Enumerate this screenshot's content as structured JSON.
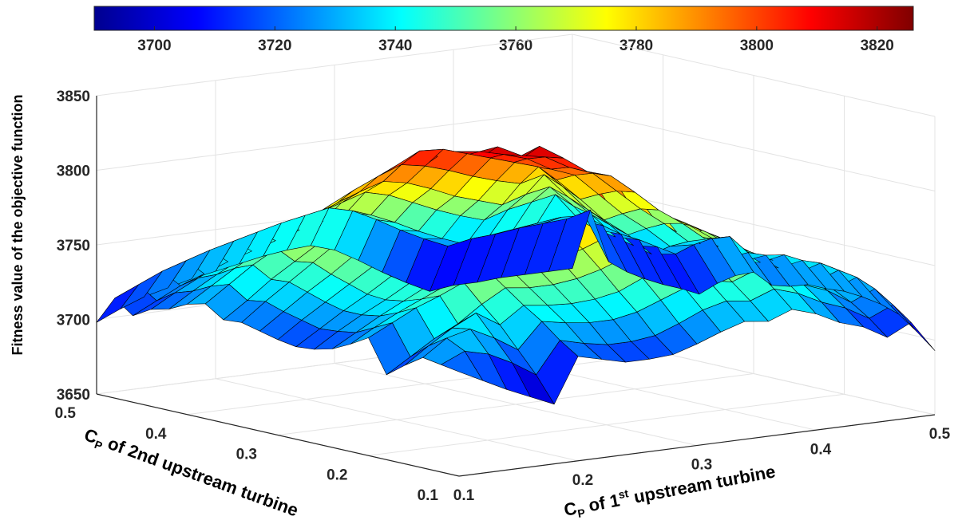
{
  "chart_data": {
    "type": "surface",
    "zlabel": "Fitness value of the objective function",
    "xlabel": {
      "prefix": "C",
      "sub": "P",
      "mid": " of 1",
      "sup": "st",
      "rest": " upstream turbine"
    },
    "ylabel": {
      "prefix": "C",
      "sub": "P",
      "rest": " of 2nd upstream turbine"
    },
    "x_ticks": [
      "0.1",
      "0.2",
      "0.3",
      "0.4",
      "0.5"
    ],
    "y_ticks": [
      "0.1",
      "0.2",
      "0.3",
      "0.4",
      "0.5"
    ],
    "z_ticks": [
      "3650",
      "3700",
      "3750",
      "3800",
      "3850"
    ],
    "colorbar_ticks": [
      "3700",
      "3720",
      "3740",
      "3760",
      "3780",
      "3800",
      "3820"
    ],
    "colorbar_range": [
      3690,
      3826
    ],
    "xlim": [
      0.1,
      0.5
    ],
    "ylim": [
      0.1,
      0.5
    ],
    "zlim": [
      3650,
      3850
    ],
    "colormap": "jet",
    "grid": true,
    "x": [
      0.1,
      0.12,
      0.14,
      0.16,
      0.18,
      0.2,
      0.22,
      0.24,
      0.26,
      0.28,
      0.3,
      0.32,
      0.34,
      0.36,
      0.38,
      0.4,
      0.42,
      0.44,
      0.46,
      0.48,
      0.5
    ],
    "y": [
      0.1,
      0.12,
      0.14,
      0.16,
      0.18,
      0.2,
      0.22,
      0.24,
      0.26,
      0.28,
      0.3,
      0.32,
      0.34,
      0.36,
      0.38,
      0.4,
      0.42,
      0.44,
      0.46,
      0.48,
      0.5
    ],
    "z": [
      [
        3720,
        3712,
        3704,
        3697,
        3690,
        3720,
        3716,
        3712,
        3712,
        3713,
        3718,
        3724,
        3729,
        3727,
        3733,
        3728,
        3720,
        3715,
        3706,
        3714,
        3693
      ],
      [
        3722,
        3729,
        3725,
        3717,
        3707,
        3728,
        3724,
        3721,
        3721,
        3723,
        3729,
        3736,
        3740,
        3738,
        3744,
        3739,
        3731,
        3725,
        3716,
        3723,
        3703
      ],
      [
        3724,
        3735,
        3739,
        3731,
        3721,
        3738,
        3735,
        3733,
        3733,
        3736,
        3742,
        3748,
        3751,
        3748,
        3754,
        3749,
        3740,
        3734,
        3724,
        3731,
        3712
      ],
      [
        3716,
        3727,
        3737,
        3745,
        3735,
        3746,
        3744,
        3743,
        3744,
        3747,
        3754,
        3759,
        3760,
        3757,
        3762,
        3756,
        3746,
        3740,
        3730,
        3736,
        3716
      ],
      [
        3707,
        3717,
        3727,
        3735,
        3746,
        3755,
        3753,
        3753,
        3755,
        3759,
        3765,
        3769,
        3768,
        3764,
        3767,
        3760,
        3750,
        3743,
        3732,
        3738,
        3718
      ],
      [
        3729,
        3737,
        3745,
        3751,
        3758,
        3764,
        3762,
        3763,
        3766,
        3770,
        3776,
        3779,
        3776,
        3770,
        3772,
        3764,
        3754,
        3746,
        3735,
        3740,
        3719
      ],
      [
        3722,
        3731,
        3739,
        3746,
        3753,
        3761,
        3769,
        3771,
        3775,
        3779,
        3785,
        3787,
        3782,
        3775,
        3775,
        3766,
        3755,
        3747,
        3736,
        3739,
        3718
      ],
      [
        3716,
        3725,
        3734,
        3742,
        3750,
        3759,
        3767,
        3776,
        3784,
        3788,
        3793,
        3794,
        3787,
        3779,
        3777,
        3768,
        3757,
        3748,
        3737,
        3740,
        3718
      ],
      [
        3713,
        3723,
        3732,
        3740,
        3749,
        3758,
        3767,
        3776,
        3785,
        3794,
        3799,
        3799,
        3791,
        3782,
        3779,
        3768,
        3756,
        3747,
        3735,
        3737,
        3714
      ],
      [
        3712,
        3722,
        3732,
        3741,
        3751,
        3760,
        3770,
        3779,
        3789,
        3798,
        3806,
        3803,
        3794,
        3784,
        3780,
        3768,
        3756,
        3746,
        3734,
        3736,
        3712
      ],
      [
        3714,
        3725,
        3735,
        3745,
        3755,
        3765,
        3775,
        3785,
        3795,
        3804,
        3812,
        3821,
        3811,
        3800,
        3795,
        3782,
        3768,
        3757,
        3744,
        3744,
        3718
      ],
      [
        3717,
        3728,
        3739,
        3749,
        3760,
        3771,
        3781,
        3792,
        3802,
        3812,
        3820,
        3812,
        3809,
        3800,
        3794,
        3780,
        3766,
        3754,
        3740,
        3740,
        3713
      ],
      [
        3720,
        3732,
        3743,
        3754,
        3765,
        3775,
        3786,
        3796,
        3806,
        3816,
        3814,
        3810,
        3805,
        3796,
        3790,
        3775,
        3760,
        3748,
        3734,
        3733,
        3705
      ],
      [
        3719,
        3730,
        3742,
        3752,
        3762,
        3772,
        3782,
        3792,
        3801,
        3810,
        3808,
        3804,
        3799,
        3795,
        3784,
        3769,
        3753,
        3741,
        3726,
        3724,
        3695
      ],
      [
        3727,
        3738,
        3749,
        3758,
        3768,
        3777,
        3786,
        3795,
        3803,
        3811,
        3810,
        3805,
        3800,
        3795,
        3790,
        3775,
        3758,
        3745,
        3729,
        3726,
        3696
      ],
      [
        3724,
        3734,
        3744,
        3753,
        3762,
        3770,
        3778,
        3786,
        3793,
        3799,
        3796,
        3791,
        3785,
        3780,
        3776,
        3780,
        3763,
        3749,
        3732,
        3728,
        3696
      ],
      [
        3718,
        3728,
        3737,
        3745,
        3753,
        3760,
        3767,
        3774,
        3780,
        3785,
        3782,
        3776,
        3769,
        3764,
        3759,
        3764,
        3767,
        3752,
        3734,
        3729,
        3697
      ],
      [
        3715,
        3724,
        3732,
        3740,
        3747,
        3753,
        3759,
        3765,
        3770,
        3775,
        3771,
        3764,
        3757,
        3751,
        3746,
        3751,
        3754,
        3757,
        3738,
        3732,
        3699
      ],
      [
        3708,
        3716,
        3724,
        3730,
        3736,
        3741,
        3746,
        3751,
        3755,
        3759,
        3755,
        3748,
        3740,
        3733,
        3727,
        3731,
        3733,
        3735,
        3737,
        3736,
        3703
      ],
      [
        3717,
        3724,
        3731,
        3736,
        3741,
        3745,
        3749,
        3753,
        3756,
        3759,
        3755,
        3747,
        3738,
        3730,
        3723,
        3726,
        3727,
        3729,
        3730,
        3731,
        3735
      ],
      [
        3698,
        3705,
        3711,
        3715,
        3719,
        3722,
        3725,
        3728,
        3730,
        3731,
        3726,
        3717,
        3707,
        3698,
        3690,
        3692,
        3692,
        3693,
        3693,
        3693,
        3693
      ]
    ]
  }
}
